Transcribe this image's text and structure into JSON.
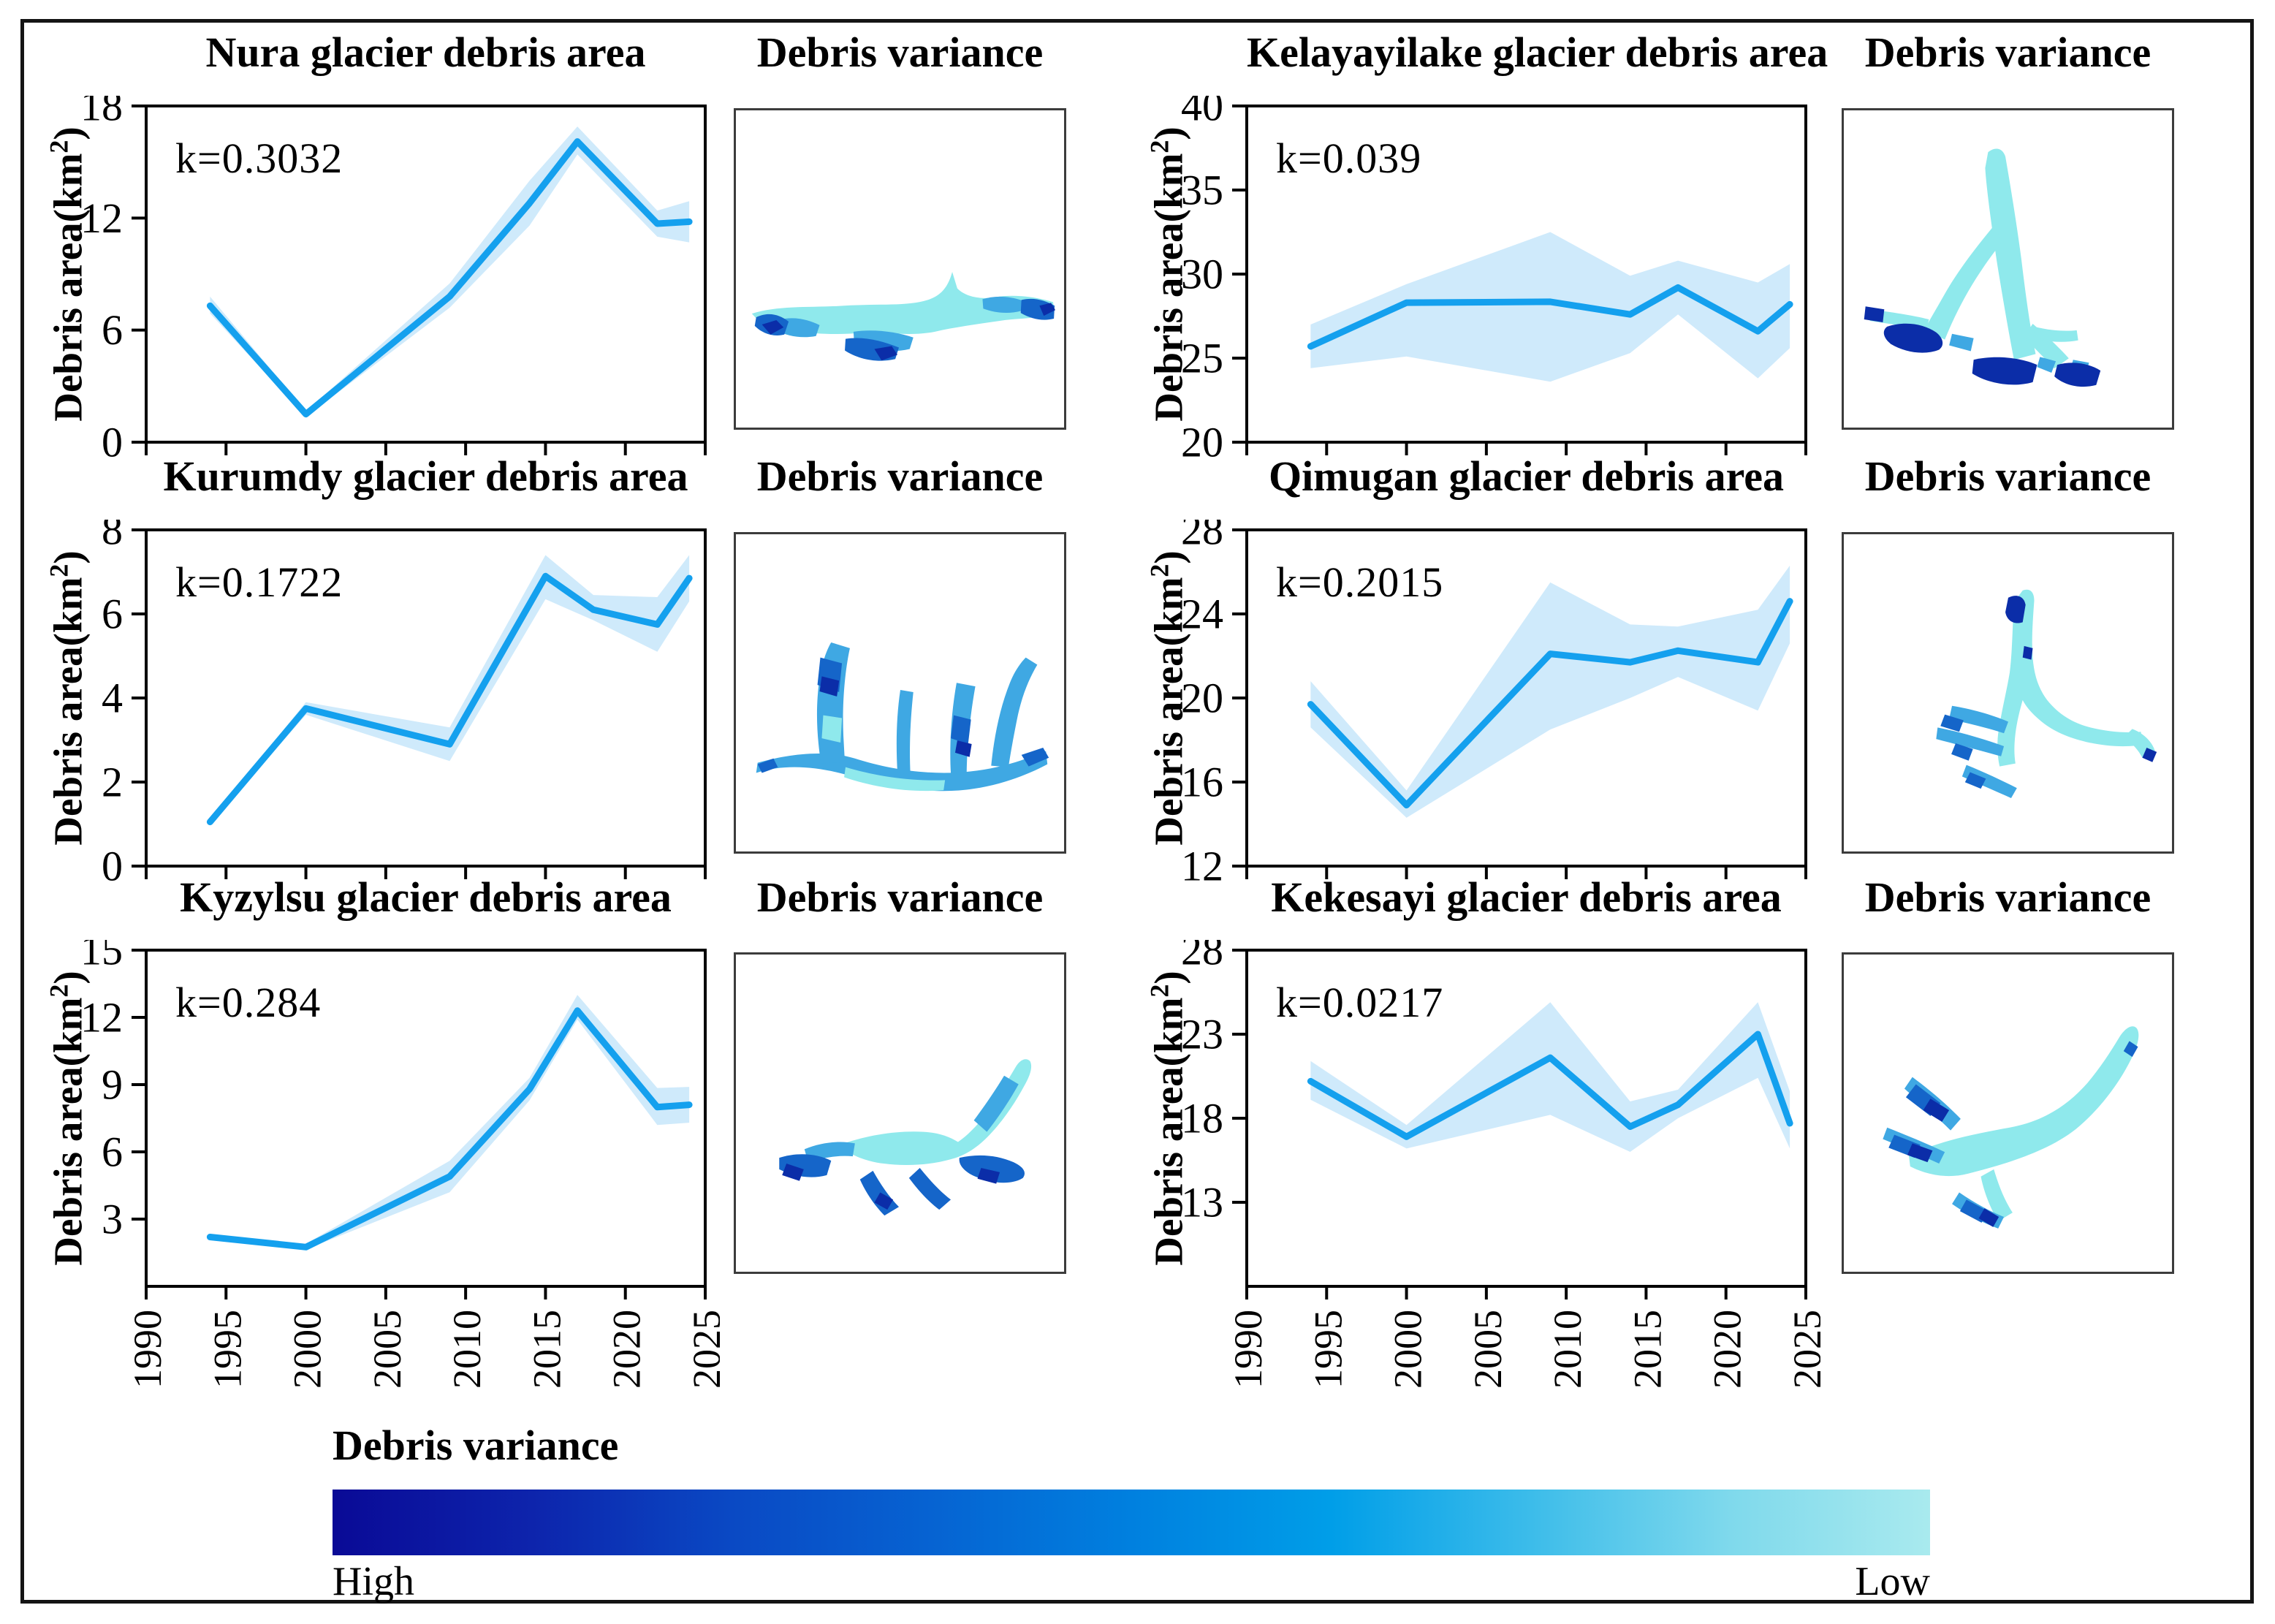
{
  "figure": {
    "background": "#ffffff",
    "border_color": "#141414"
  },
  "ylabel": {
    "prefix": "Debris area(km",
    "sup": "2",
    "suffix": ")"
  },
  "variance_title": "Debris variance",
  "colors": {
    "line": "#14A0EE",
    "band": "#CFEAFB",
    "map_low": "#8FE9EC",
    "map_mid": "#3FA8E3",
    "map_high": "#1565C9",
    "map_max": "#0B2DA8"
  },
  "x_axis": {
    "ticks": [
      1990,
      1995,
      2000,
      2005,
      2010,
      2015,
      2020,
      2025
    ]
  },
  "chart_data": [
    {
      "type": "line",
      "title": "Nura glacier debris area",
      "k_label": "k=0.3032",
      "x": [
        1994,
        2000,
        2009,
        2014,
        2017,
        2022,
        2024
      ],
      "y": [
        7.3,
        1.5,
        7.8,
        12.8,
        16.1,
        11.7,
        11.8
      ],
      "band_lower": [
        6.9,
        1.35,
        7.2,
        11.6,
        15.4,
        11.0,
        10.7
      ],
      "band_upper": [
        7.8,
        1.65,
        8.5,
        14.0,
        16.9,
        12.4,
        12.9
      ],
      "xlim": [
        1990,
        2025
      ],
      "ylim": [
        0,
        18
      ],
      "y_ticks": [
        0,
        6,
        12,
        18
      ],
      "show_x_labels": false
    },
    {
      "type": "line",
      "title": "Kelayayilake glacier debris area",
      "k_label": "k=0.039",
      "x": [
        1994,
        2000,
        2009,
        2014,
        2017,
        2022,
        2024
      ],
      "y": [
        25.7,
        28.3,
        28.35,
        27.6,
        29.2,
        26.6,
        28.2
      ],
      "band_lower": [
        24.4,
        25.1,
        23.6,
        25.3,
        27.6,
        23.8,
        25.6
      ],
      "band_upper": [
        27.0,
        29.4,
        32.5,
        29.9,
        30.8,
        29.5,
        30.6
      ],
      "xlim": [
        1990,
        2025
      ],
      "ylim": [
        20,
        40
      ],
      "y_ticks": [
        20,
        25,
        30,
        35,
        40
      ],
      "show_x_labels": false
    },
    {
      "type": "line",
      "title": "Kurumdy glacier debris area",
      "k_label": "k=0.1722",
      "x": [
        1994,
        2000,
        2009,
        2015,
        2018,
        2022,
        2024
      ],
      "y": [
        1.05,
        3.75,
        2.9,
        6.9,
        6.1,
        5.75,
        6.85
      ],
      "band_lower": [
        1.0,
        3.6,
        2.5,
        6.35,
        5.85,
        5.1,
        6.3
      ],
      "band_upper": [
        1.1,
        3.9,
        3.3,
        7.4,
        6.45,
        6.4,
        7.4
      ],
      "xlim": [
        1990,
        2025
      ],
      "ylim": [
        0,
        8
      ],
      "y_ticks": [
        0,
        2,
        4,
        6,
        8
      ],
      "show_x_labels": false
    },
    {
      "type": "line",
      "title": "Qimugan glacier debris area",
      "k_label": "k=0.2015",
      "x": [
        1994,
        2000,
        2009,
        2014,
        2017,
        2022,
        2024
      ],
      "y": [
        19.7,
        14.9,
        22.1,
        21.7,
        22.25,
        21.7,
        24.6
      ],
      "band_lower": [
        18.6,
        14.3,
        18.5,
        20.0,
        21.0,
        19.4,
        22.6
      ],
      "band_upper": [
        20.8,
        15.6,
        25.5,
        23.5,
        23.4,
        24.2,
        26.3
      ],
      "xlim": [
        1990,
        2025
      ],
      "ylim": [
        12,
        28
      ],
      "y_ticks": [
        12,
        16,
        20,
        24,
        28
      ],
      "show_x_labels": false
    },
    {
      "type": "line",
      "title": "Kyzylsu glacier debris area",
      "k_label": "k=0.284",
      "x": [
        1994,
        2000,
        2009,
        2014,
        2017,
        2022,
        2024
      ],
      "y": [
        2.2,
        1.75,
        4.9,
        8.8,
        12.3,
        8.0,
        8.1
      ],
      "band_lower": [
        2.1,
        1.65,
        4.2,
        8.3,
        11.9,
        7.2,
        7.3
      ],
      "band_upper": [
        2.3,
        1.9,
        5.6,
        9.3,
        13.0,
        8.85,
        8.9
      ],
      "xlim": [
        1990,
        2025
      ],
      "ylim": [
        0,
        15
      ],
      "y_ticks": [
        3,
        6,
        9,
        12,
        15
      ],
      "show_x_labels": true
    },
    {
      "type": "line",
      "title": "Kekesayi glacier debris area",
      "k_label": "k=0.0217",
      "x": [
        1994,
        2000,
        2009,
        2014,
        2017,
        2022,
        2024
      ],
      "y": [
        20.2,
        16.9,
        21.6,
        17.5,
        18.8,
        23.0,
        17.7
      ],
      "band_lower": [
        19.1,
        16.2,
        18.2,
        16.0,
        18.0,
        20.4,
        16.2
      ],
      "band_upper": [
        21.4,
        17.6,
        24.9,
        19.0,
        19.7,
        24.9,
        19.6
      ],
      "xlim": [
        1990,
        2025
      ],
      "ylim": [
        8,
        28
      ],
      "y_ticks": [
        13,
        18,
        23,
        28
      ],
      "show_x_labels": true
    }
  ],
  "colorbar": {
    "title": "Debris variance",
    "high_label": "High",
    "low_label": "Low",
    "gradient": [
      "#0A0A96",
      "#0D24AC",
      "#0A49C4",
      "#0663D2",
      "#0080DF",
      "#009EE8",
      "#3CBCEA",
      "#7FD9EC",
      "#A9EAEE"
    ]
  }
}
